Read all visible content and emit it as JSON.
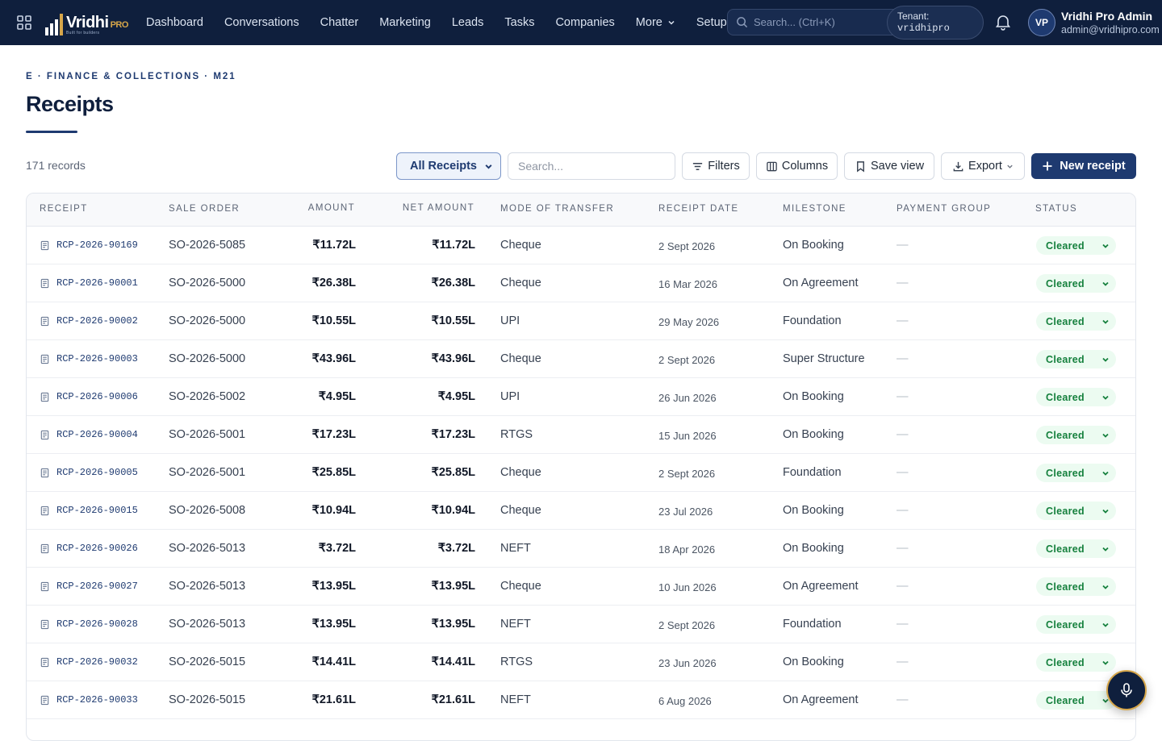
{
  "brand": {
    "name": "Vridhi",
    "suffix": "PRO",
    "tagline": "Built for builders"
  },
  "nav": {
    "items": [
      {
        "label": "Dashboard"
      },
      {
        "label": "Conversations"
      },
      {
        "label": "Chatter"
      },
      {
        "label": "Marketing"
      },
      {
        "label": "Leads"
      },
      {
        "label": "Tasks"
      },
      {
        "label": "Companies"
      },
      {
        "label": "More"
      },
      {
        "label": "Setup"
      }
    ],
    "search_placeholder": "Search... (Ctrl+K)"
  },
  "tenant": {
    "label": "Tenant:",
    "value": "vridhipro"
  },
  "user": {
    "initials": "VP",
    "name": "Vridhi Pro Admin",
    "email": "admin@vridhipro.com"
  },
  "page": {
    "breadcrumb": "E · FINANCE & COLLECTIONS · M21",
    "title": "Receipts"
  },
  "toolbar": {
    "record_count": "171 records",
    "view_selected": "All Receipts",
    "search_placeholder": "Search...",
    "filters_label": "Filters",
    "columns_label": "Columns",
    "save_view_label": "Save view",
    "export_label": "Export",
    "new_label": "New receipt"
  },
  "table": {
    "columns": {
      "receipt": "RECEIPT",
      "sale_order": "SALE ORDER",
      "amount": "AMOUNT",
      "net_amount": "NET AMOUNT",
      "mode": "MODE OF TRANSFER",
      "date": "RECEIPT DATE",
      "milestone": "MILESTONE",
      "payment_group": "PAYMENT GROUP",
      "status": "STATUS"
    },
    "rows": [
      {
        "receipt": "RCP-2026-90169",
        "sale_order": "SO-2026-5085",
        "amount": "₹11.72L",
        "net_amount": "₹11.72L",
        "mode": "Cheque",
        "date": "2 Sept 2026",
        "milestone": "On Booking",
        "payment_group": "—",
        "status": "Cleared"
      },
      {
        "receipt": "RCP-2026-90001",
        "sale_order": "SO-2026-5000",
        "amount": "₹26.38L",
        "net_amount": "₹26.38L",
        "mode": "Cheque",
        "date": "16 Mar 2026",
        "milestone": "On Agreement",
        "payment_group": "—",
        "status": "Cleared"
      },
      {
        "receipt": "RCP-2026-90002",
        "sale_order": "SO-2026-5000",
        "amount": "₹10.55L",
        "net_amount": "₹10.55L",
        "mode": "UPI",
        "date": "29 May 2026",
        "milestone": "Foundation",
        "payment_group": "—",
        "status": "Cleared"
      },
      {
        "receipt": "RCP-2026-90003",
        "sale_order": "SO-2026-5000",
        "amount": "₹43.96L",
        "net_amount": "₹43.96L",
        "mode": "Cheque",
        "date": "2 Sept 2026",
        "milestone": "Super Structure",
        "payment_group": "—",
        "status": "Cleared"
      },
      {
        "receipt": "RCP-2026-90006",
        "sale_order": "SO-2026-5002",
        "amount": "₹4.95L",
        "net_amount": "₹4.95L",
        "mode": "UPI",
        "date": "26 Jun 2026",
        "milestone": "On Booking",
        "payment_group": "—",
        "status": "Cleared"
      },
      {
        "receipt": "RCP-2026-90004",
        "sale_order": "SO-2026-5001",
        "amount": "₹17.23L",
        "net_amount": "₹17.23L",
        "mode": "RTGS",
        "date": "15 Jun 2026",
        "milestone": "On Booking",
        "payment_group": "—",
        "status": "Cleared"
      },
      {
        "receipt": "RCP-2026-90005",
        "sale_order": "SO-2026-5001",
        "amount": "₹25.85L",
        "net_amount": "₹25.85L",
        "mode": "Cheque",
        "date": "2 Sept 2026",
        "milestone": "Foundation",
        "payment_group": "—",
        "status": "Cleared"
      },
      {
        "receipt": "RCP-2026-90015",
        "sale_order": "SO-2026-5008",
        "amount": "₹10.94L",
        "net_amount": "₹10.94L",
        "mode": "Cheque",
        "date": "23 Jul 2026",
        "milestone": "On Booking",
        "payment_group": "—",
        "status": "Cleared"
      },
      {
        "receipt": "RCP-2026-90026",
        "sale_order": "SO-2026-5013",
        "amount": "₹3.72L",
        "net_amount": "₹3.72L",
        "mode": "NEFT",
        "date": "18 Apr 2026",
        "milestone": "On Booking",
        "payment_group": "—",
        "status": "Cleared"
      },
      {
        "receipt": "RCP-2026-90027",
        "sale_order": "SO-2026-5013",
        "amount": "₹13.95L",
        "net_amount": "₹13.95L",
        "mode": "Cheque",
        "date": "10 Jun 2026",
        "milestone": "On Agreement",
        "payment_group": "—",
        "status": "Cleared"
      },
      {
        "receipt": "RCP-2026-90028",
        "sale_order": "SO-2026-5013",
        "amount": "₹13.95L",
        "net_amount": "₹13.95L",
        "mode": "NEFT",
        "date": "2 Sept 2026",
        "milestone": "Foundation",
        "payment_group": "—",
        "status": "Cleared"
      },
      {
        "receipt": "RCP-2026-90032",
        "sale_order": "SO-2026-5015",
        "amount": "₹14.41L",
        "net_amount": "₹14.41L",
        "mode": "RTGS",
        "date": "23 Jun 2026",
        "milestone": "On Booking",
        "payment_group": "—",
        "status": "Cleared"
      },
      {
        "receipt": "RCP-2026-90033",
        "sale_order": "SO-2026-5015",
        "amount": "₹21.61L",
        "net_amount": "₹21.61L",
        "mode": "NEFT",
        "date": "6 Aug 2026",
        "milestone": "On Agreement",
        "payment_group": "—",
        "status": "Cleared"
      }
    ]
  },
  "icons": {
    "apps": "grid-icon",
    "search": "search-icon",
    "bell": "bell-icon",
    "receipt": "document-icon",
    "filters": "filter-icon",
    "columns": "columns-icon",
    "save_view": "bookmark-icon",
    "export": "download-icon",
    "new": "plus-icon",
    "status_menu": "chevron-down-icon",
    "voice": "microphone-icon"
  },
  "colors": {
    "navy": "#0f1f3d",
    "brand_accent": "#1e3a70",
    "gold": "#d6a64a",
    "status_cleared_bg": "#ecfbf1",
    "status_cleared_text": "#15803d"
  }
}
